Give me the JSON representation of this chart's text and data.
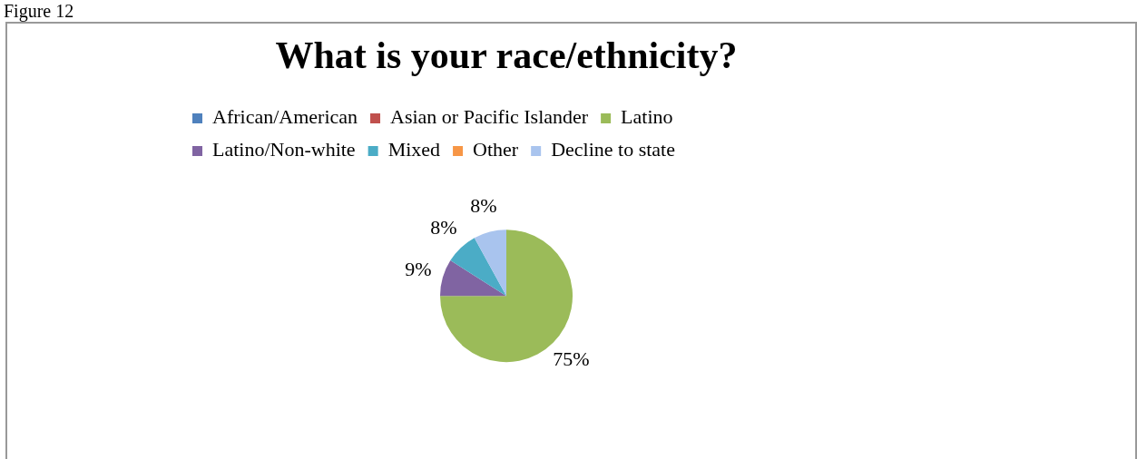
{
  "chart_data": {
    "type": "pie",
    "title": "What is your race/ethnicity?",
    "categories": [
      "African/American",
      "Asian or Pacific Islander",
      "Latino",
      "Latino/Non-white",
      "Mixed",
      "Other",
      "Decline to state"
    ],
    "values": [
      0,
      0,
      75,
      9,
      8,
      0,
      8
    ],
    "colors": [
      "#4f81bd",
      "#c0504d",
      "#9bbb59",
      "#8064a2",
      "#4bacc6",
      "#f79646",
      "#a9c4ee"
    ],
    "value_labels": [
      null,
      null,
      "75%",
      "9%",
      "8%",
      null,
      "8%"
    ],
    "legend": "top",
    "annotations": [
      "Figure 12"
    ]
  }
}
